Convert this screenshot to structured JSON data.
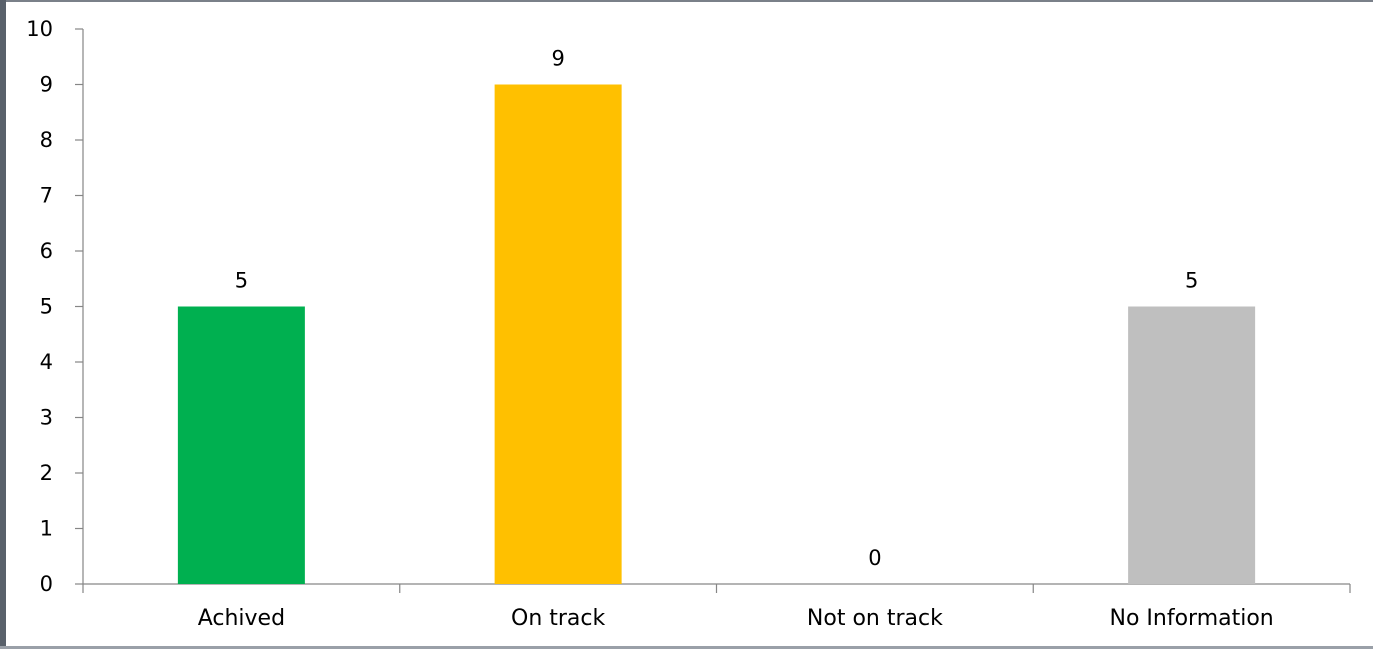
{
  "chart_data": {
    "type": "bar",
    "categories": [
      "Achived",
      "On track",
      "Not on track",
      "No Information"
    ],
    "values": [
      5,
      9,
      0,
      5
    ],
    "bar_colors": [
      "#00B050",
      "#FFC000",
      "#FF0000",
      "#BFBFBF"
    ],
    "ylim": [
      0,
      10
    ],
    "y_ticks": [
      "0",
      "1",
      "2",
      "3",
      "4",
      "5",
      "6",
      "7",
      "8",
      "9",
      "10"
    ],
    "data_labels": [
      "5",
      "9",
      "0",
      "5"
    ],
    "grid": false,
    "legend": "none",
    "title": "",
    "xlabel": "",
    "ylabel": ""
  }
}
